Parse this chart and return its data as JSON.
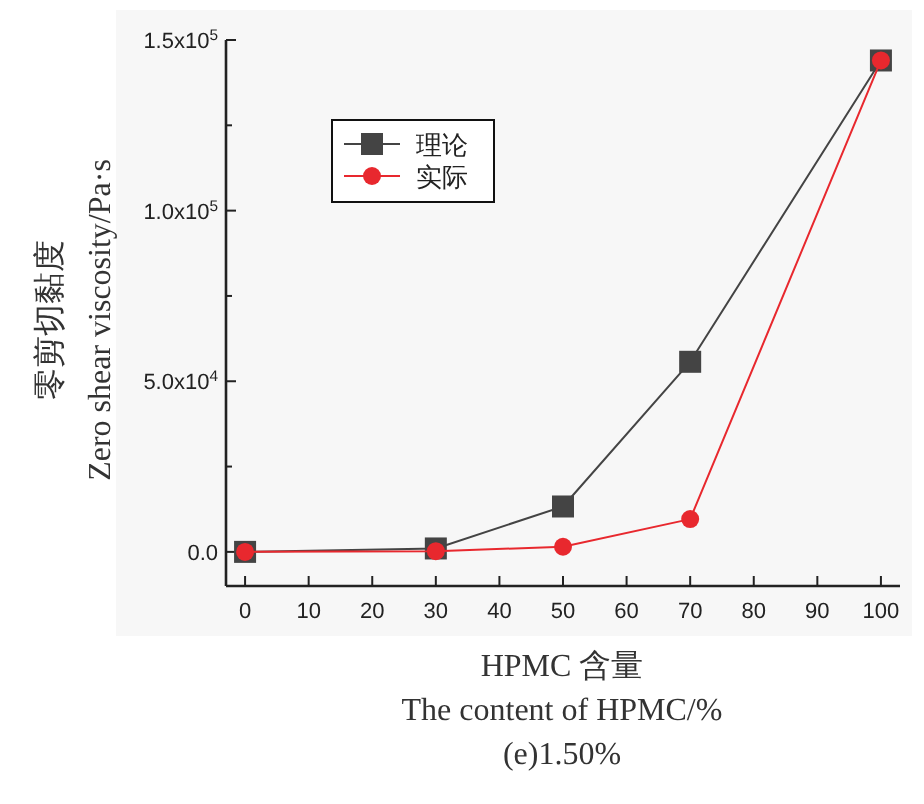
{
  "chart_data": {
    "type": "line",
    "xlabel": "HPMC 含量\nThe content of HPMC/%",
    "ylabel": "零剪切黏度\nZero shear viscosity/Pa·s",
    "annotations": [
      "(e)1.50%"
    ],
    "x": [
      0,
      30,
      50,
      70,
      100
    ],
    "series": [
      {
        "name": "理论",
        "color": "#444444",
        "values": [
          0,
          1000,
          13300,
          55700,
          144000
        ],
        "marker": "square"
      },
      {
        "name": "实际",
        "color": "#e8282e",
        "values": [
          0,
          200,
          1500,
          9600,
          144000
        ],
        "marker": "circle"
      }
    ],
    "xlim": [
      -3,
      103
    ],
    "xticks": [
      0,
      10,
      20,
      30,
      40,
      50,
      60,
      70,
      80,
      90,
      100
    ],
    "ylim": [
      -10000,
      150000
    ],
    "yticks": [
      {
        "value": 0,
        "label": "0.0"
      },
      {
        "value": 25000,
        "label": null
      },
      {
        "value": 50000,
        "label": "5.0x10$^{4}$"
      },
      {
        "value": 75000,
        "label": null
      },
      {
        "value": 100000,
        "label": "1.0x10$^{5}$"
      },
      {
        "value": 125000,
        "label": null
      },
      {
        "value": 150000,
        "label": "1.5x10$^{5}$"
      }
    ],
    "legend": "top left",
    "grid": false,
    "line_style": "solid"
  }
}
